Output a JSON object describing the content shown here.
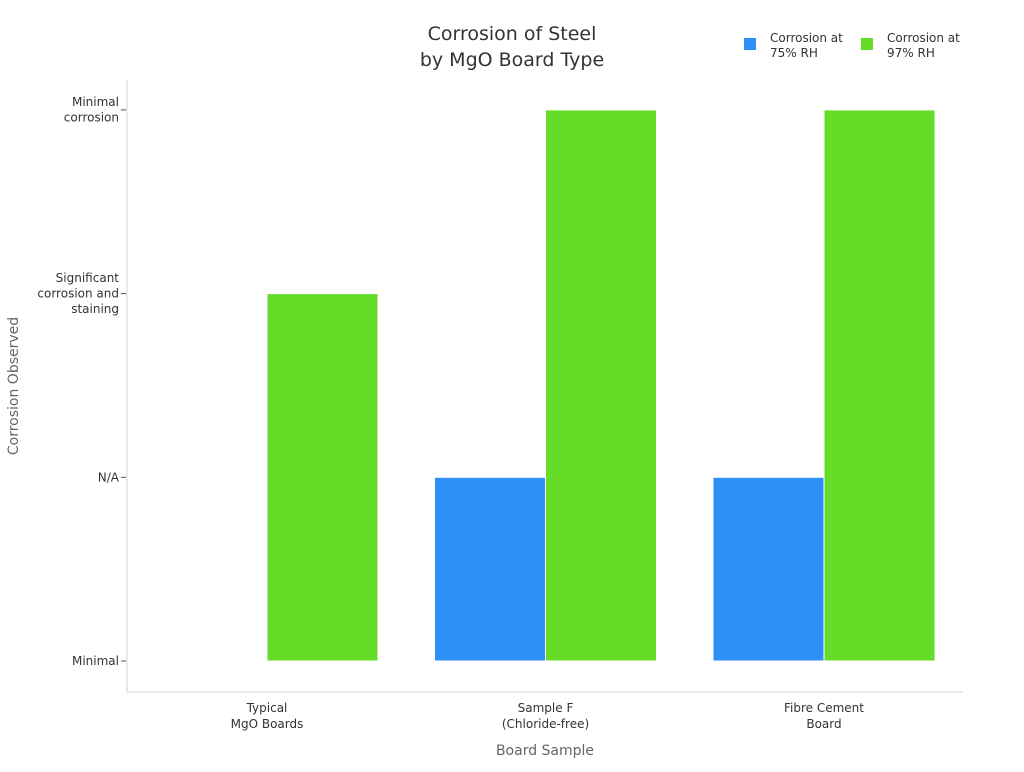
{
  "chart_data": {
    "type": "bar",
    "title": [
      "Corrosion of Steel",
      "by MgO Board Type"
    ],
    "xlabel": "Board Sample",
    "ylabel": "Corrosion Observed",
    "categories": [
      [
        "Typical",
        "MgO Boards"
      ],
      [
        "Sample F",
        "(Chloride-free)"
      ],
      [
        "Fibre Cement",
        "Board"
      ]
    ],
    "y_levels": [
      [
        "Minimal"
      ],
      [
        "N/A"
      ],
      [
        "Significant",
        "corrosion and",
        "staining"
      ],
      [
        "Minimal",
        "corrosion"
      ]
    ],
    "series": [
      {
        "name": [
          "Corrosion at",
          "75% RH"
        ],
        "color": "#2e90f6",
        "values": [
          "Minimal",
          "N/A",
          "N/A"
        ]
      },
      {
        "name": [
          "Corrosion at",
          "97% RH"
        ],
        "color": "#66db28",
        "values": [
          "Significant corrosion and staining",
          "Minimal corrosion",
          "Minimal corrosion"
        ]
      }
    ],
    "legend_position": "top-right",
    "grid": false
  }
}
